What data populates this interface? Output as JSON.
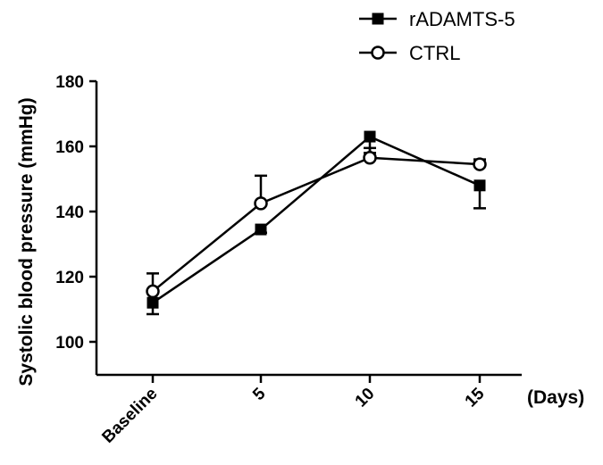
{
  "chart_data": {
    "type": "line",
    "categories": [
      "Baseline",
      "5",
      "10",
      "15"
    ],
    "xlabel": "(Days)",
    "ylabel": "Systolic blood pressure (mmHg)",
    "yticks": [
      "100",
      "120",
      "140",
      "160",
      "180"
    ],
    "ylim": [
      100,
      180
    ],
    "grid": false,
    "legend_position": "top-right",
    "series": [
      {
        "name": "rADAMTS-5",
        "marker": "filled-square",
        "values": [
          112,
          134.5,
          163,
          148
        ],
        "errors": [
          3.5,
          1.0,
          5.0,
          7.0
        ],
        "error_draw": "down",
        "color": "#000000"
      },
      {
        "name": "CTRL",
        "marker": "open-circle",
        "values": [
          115.5,
          142.5,
          156.5,
          154.5
        ],
        "errors": [
          5.5,
          8.5,
          3.0,
          1.5
        ],
        "error_draw": "up",
        "color": "#000000"
      }
    ]
  }
}
